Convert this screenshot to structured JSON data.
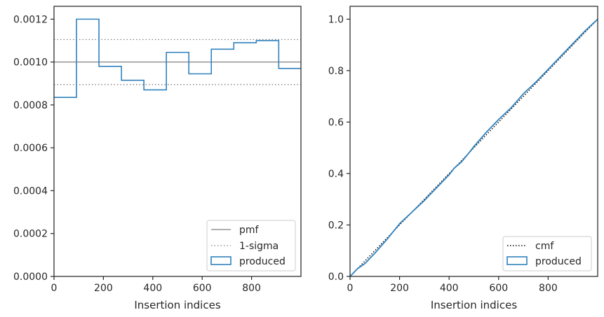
{
  "colors": {
    "pmf": "#808080",
    "sigma": "#808080",
    "produced": "#3182bd",
    "cmf": "#000000",
    "axis": "#262626"
  },
  "chart_data": [
    {
      "type": "histogram",
      "title": "",
      "xlabel": "Insertion indices",
      "ylabel": "",
      "xlim": [
        0,
        1000
      ],
      "ylim": [
        0,
        0.00126
      ],
      "xticks": [
        0,
        200,
        400,
        600,
        800
      ],
      "xtick_labels": [
        "0",
        "200",
        "400",
        "600",
        "800"
      ],
      "yticks": [
        0,
        0.0002,
        0.0004,
        0.0006,
        0.0008,
        0.001,
        0.0012
      ],
      "ytick_labels": [
        "0.0000",
        "0.0002",
        "0.0004",
        "0.0006",
        "0.0008",
        "0.0010",
        "0.0012"
      ],
      "grid": false,
      "legend_position": "lower-right",
      "bin_edges": [
        0,
        91,
        182,
        273,
        364,
        455,
        546,
        637,
        728,
        819,
        910,
        1000
      ],
      "values": [
        0.000835,
        0.0012,
        0.00098,
        0.000915,
        0.00087,
        0.001045,
        0.000945,
        0.00106,
        0.00109,
        0.0011,
        0.00097
      ],
      "pmf": 0.001,
      "sigma_band": [
        0.000895,
        0.001105
      ],
      "legend": [
        {
          "label": "pmf",
          "style": "solid-line"
        },
        {
          "label": "1-sigma",
          "style": "dotted-line"
        },
        {
          "label": "produced",
          "style": "box"
        }
      ]
    },
    {
      "type": "line",
      "title": "",
      "xlabel": "Insertion indices",
      "ylabel": "",
      "xlim": [
        0,
        1000
      ],
      "ylim": [
        0,
        1.05
      ],
      "xticks": [
        0,
        200,
        400,
        600,
        800
      ],
      "xtick_labels": [
        "0",
        "200",
        "400",
        "600",
        "800"
      ],
      "yticks": [
        0,
        0.2,
        0.4,
        0.6,
        0.8,
        1.0
      ],
      "ytick_labels": [
        "0.0",
        "0.2",
        "0.4",
        "0.6",
        "0.8",
        "1.0"
      ],
      "grid": false,
      "legend_position": "lower-right",
      "series": [
        {
          "name": "cmf",
          "style": "dotted",
          "x": [
            0,
            1000
          ],
          "y": [
            0,
            1.0
          ]
        },
        {
          "name": "produced",
          "style": "solid",
          "x": [
            0,
            30,
            60,
            100,
            150,
            200,
            250,
            300,
            350,
            400,
            420,
            450,
            480,
            500,
            550,
            600,
            650,
            700,
            750,
            800,
            850,
            900,
            950,
            1000
          ],
          "y": [
            0,
            0.03,
            0.05,
            0.09,
            0.145,
            0.205,
            0.25,
            0.295,
            0.345,
            0.395,
            0.42,
            0.445,
            0.48,
            0.505,
            0.56,
            0.61,
            0.655,
            0.71,
            0.755,
            0.805,
            0.855,
            0.905,
            0.955,
            1.0
          ]
        }
      ],
      "legend": [
        {
          "label": "cmf",
          "style": "dotted-line"
        },
        {
          "label": "produced",
          "style": "box"
        }
      ]
    }
  ]
}
